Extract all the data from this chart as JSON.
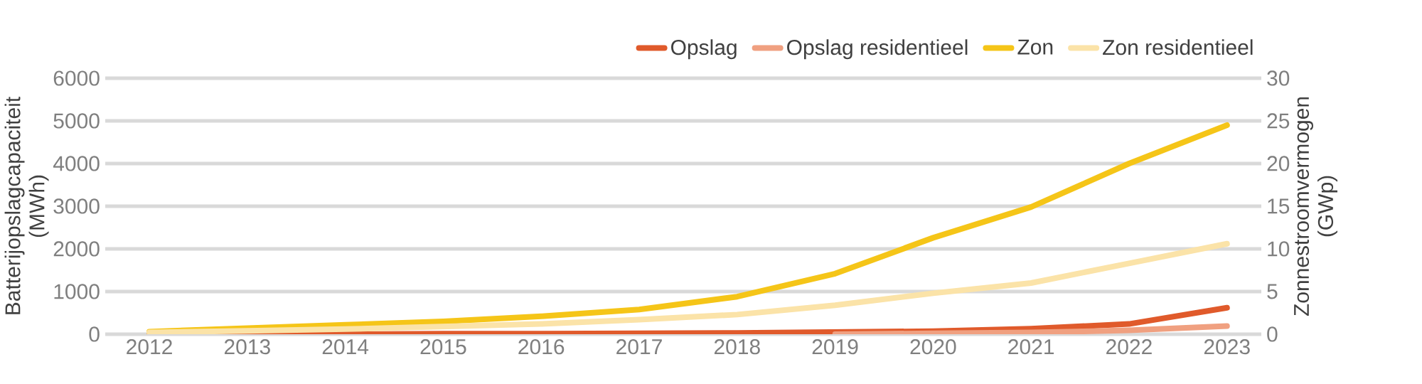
{
  "chart_data": {
    "type": "line",
    "categories": [
      "2012",
      "2013",
      "2014",
      "2015",
      "2016",
      "2017",
      "2018",
      "2019",
      "2020",
      "2021",
      "2022",
      "2023"
    ],
    "ylabel": "Batterijopslagcapaciteit (MWh)",
    "y2label": "Zonnestroomvermogen (GWp)",
    "ylim": [
      0,
      6000
    ],
    "yticks": [
      0,
      1000,
      2000,
      3000,
      4000,
      5000,
      6000
    ],
    "y2lim": [
      0,
      30
    ],
    "y2ticks": [
      0,
      5,
      10,
      15,
      20,
      25,
      30
    ],
    "grid": "y",
    "legend": "top right",
    "series": [
      {
        "name": "Opslag",
        "color": "#e05a2b",
        "axis": "y",
        "values": [
          0,
          0,
          0,
          10,
          10,
          20,
          30,
          50,
          70,
          130,
          240,
          620
        ]
      },
      {
        "name": "Opslag residentieel",
        "color": "#f0a080",
        "axis": "y",
        "values": [
          null,
          null,
          null,
          null,
          null,
          null,
          null,
          0,
          20,
          40,
          90,
          190
        ]
      },
      {
        "name": "Zon",
        "color": "#f5c518",
        "axis": "y2",
        "values": [
          0.3,
          0.7,
          1.1,
          1.5,
          2.1,
          2.9,
          4.4,
          7.1,
          11.3,
          14.9,
          20.0,
          24.5
        ]
      },
      {
        "name": "Zon residentieel",
        "color": "#fbe3a8",
        "axis": "y2",
        "values": [
          0.2,
          0.4,
          0.6,
          0.9,
          1.2,
          1.7,
          2.3,
          3.4,
          4.8,
          6.0,
          8.3,
          10.6
        ]
      }
    ]
  }
}
